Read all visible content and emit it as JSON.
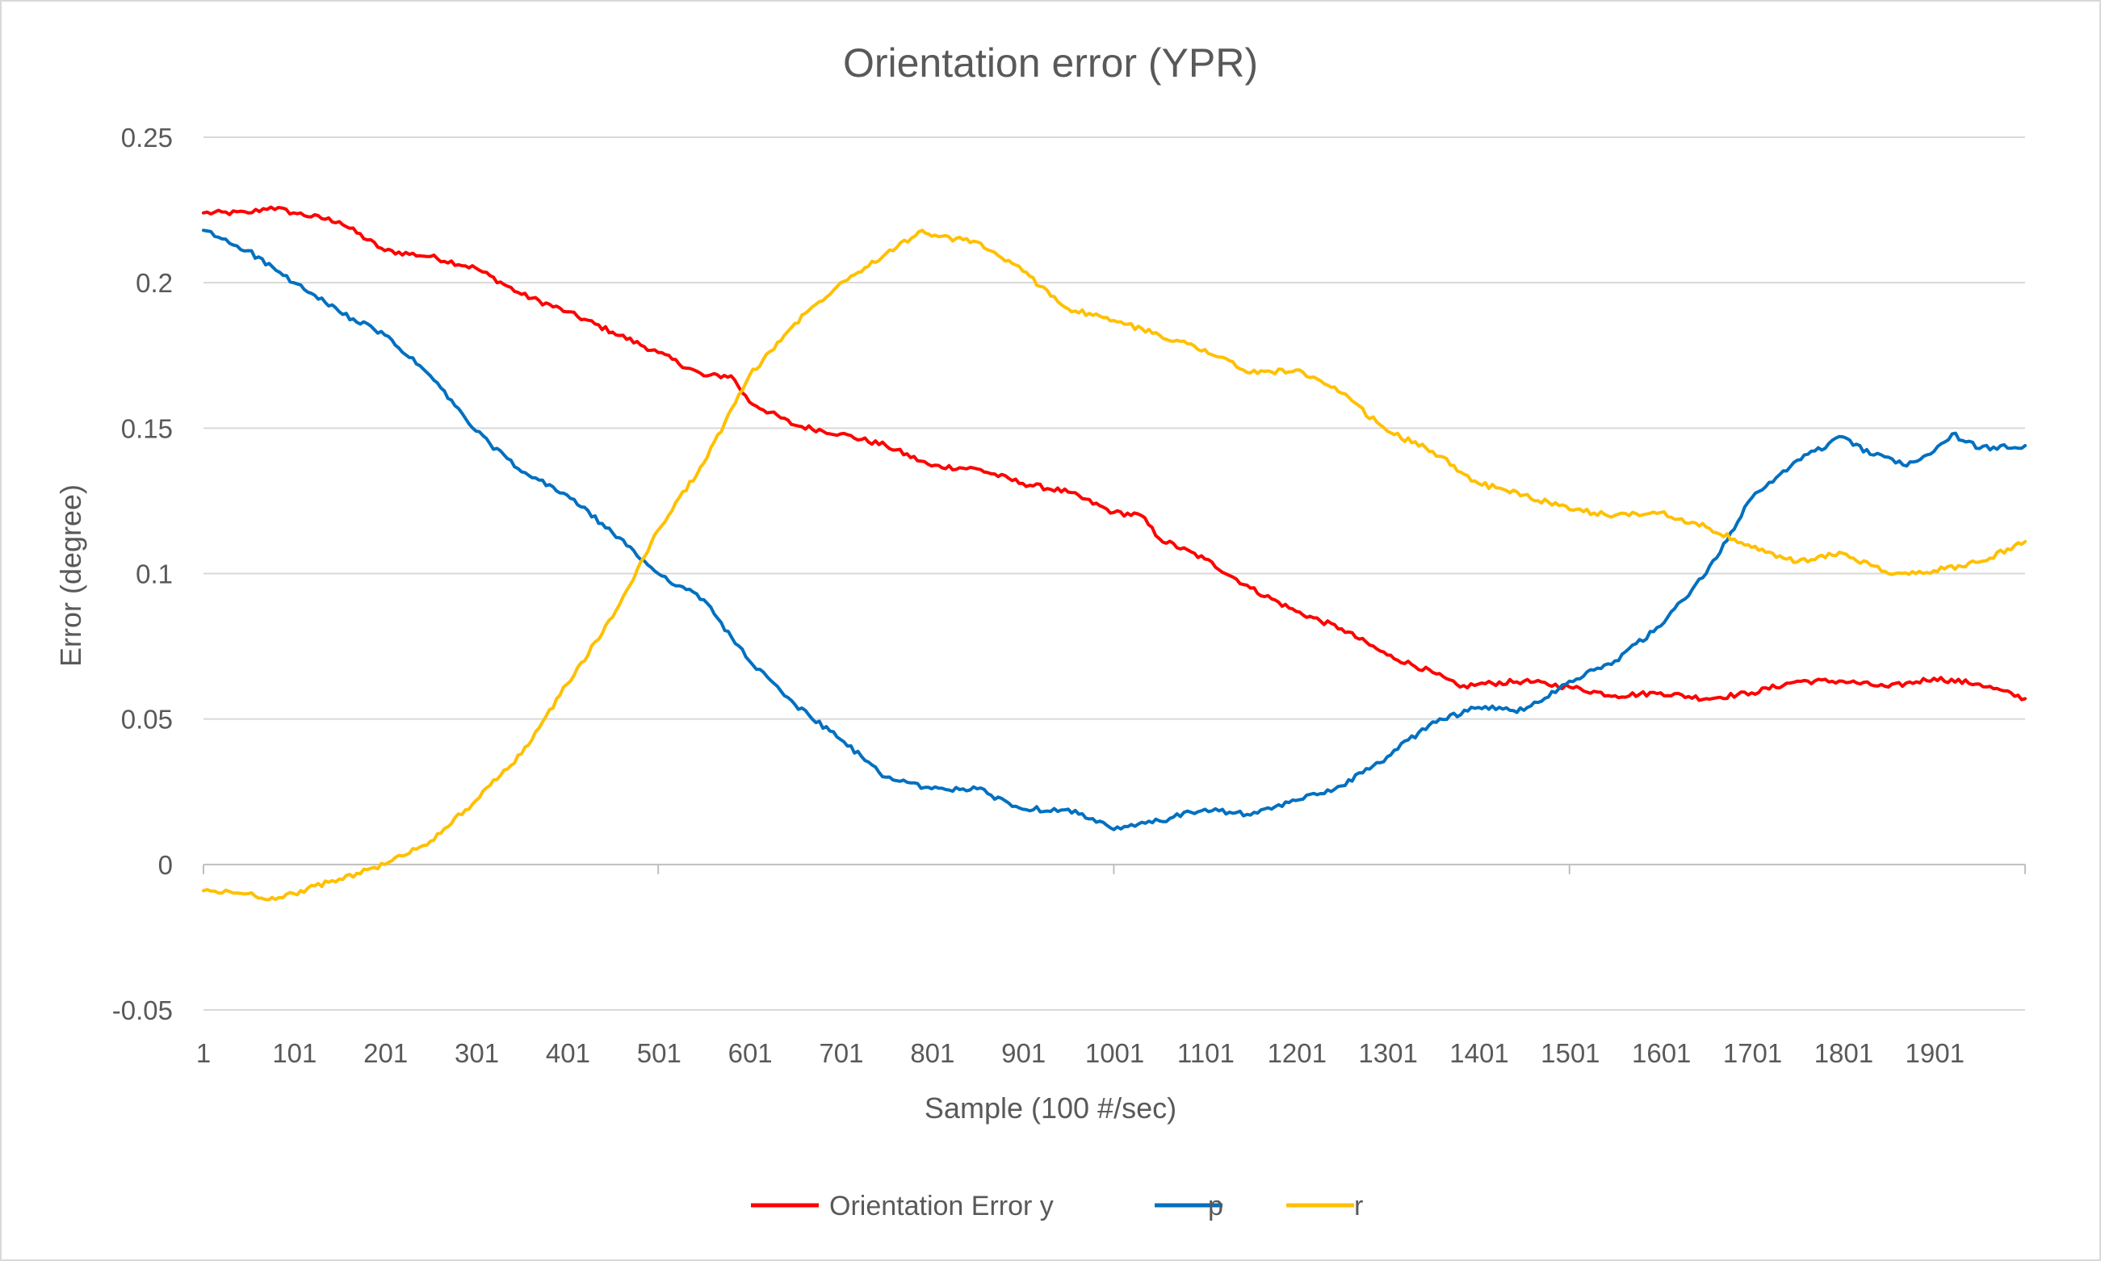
{
  "chart_data": {
    "type": "line",
    "title": "Orientation error (YPR)",
    "xlabel": "Sample (100 #/sec)",
    "ylabel": "Error (degree)",
    "x_range": [
      1,
      2000
    ],
    "ylim": [
      -0.05,
      0.25
    ],
    "y_ticks": [
      0.25,
      0.2,
      0.15,
      0.1,
      0.05,
      0,
      -0.05
    ],
    "y_tick_labels": [
      "0.25",
      "0.2",
      "0.15",
      "0.1",
      "0.05",
      "0",
      "-0.05"
    ],
    "x_ticks": [
      1,
      101,
      201,
      301,
      401,
      501,
      601,
      701,
      801,
      901,
      1001,
      1101,
      1201,
      1301,
      1401,
      1501,
      1601,
      1701,
      1801,
      1901
    ],
    "x_tick_labels": [
      "1",
      "101",
      "201",
      "301",
      "401",
      "501",
      "601",
      "701",
      "801",
      "901",
      "1001",
      "1101",
      "1201",
      "1301",
      "1401",
      "1501",
      "1601",
      "1701",
      "1801",
      "1901"
    ],
    "grid": true,
    "legend_position": "bottom",
    "series": [
      {
        "name": "Orientation Error y",
        "color": "#ff0000",
        "x": [
          1,
          50,
          75,
          100,
          150,
          200,
          250,
          300,
          350,
          400,
          450,
          500,
          550,
          580,
          600,
          650,
          700,
          750,
          800,
          850,
          900,
          950,
          1000,
          1030,
          1050,
          1100,
          1150,
          1200,
          1250,
          1300,
          1350,
          1380,
          1400,
          1450,
          1500,
          1550,
          1600,
          1650,
          1700,
          1750,
          1800,
          1850,
          1900,
          1950,
          2000
        ],
        "y": [
          0.224,
          0.224,
          0.226,
          0.224,
          0.221,
          0.211,
          0.209,
          0.205,
          0.196,
          0.19,
          0.183,
          0.176,
          0.168,
          0.168,
          0.159,
          0.151,
          0.148,
          0.144,
          0.137,
          0.136,
          0.131,
          0.128,
          0.121,
          0.12,
          0.112,
          0.105,
          0.095,
          0.087,
          0.081,
          0.072,
          0.066,
          0.061,
          0.062,
          0.063,
          0.061,
          0.058,
          0.059,
          0.057,
          0.059,
          0.063,
          0.063,
          0.061,
          0.064,
          0.062,
          0.057
        ]
      },
      {
        "name": "p",
        "color": "#0070c0",
        "x": [
          1,
          50,
          100,
          150,
          200,
          250,
          300,
          350,
          400,
          450,
          500,
          550,
          600,
          650,
          700,
          750,
          800,
          850,
          900,
          950,
          1000,
          1050,
          1100,
          1150,
          1200,
          1250,
          1300,
          1350,
          1400,
          1450,
          1500,
          1550,
          1600,
          1650,
          1700,
          1750,
          1800,
          1830,
          1850,
          1870,
          1900,
          1920,
          1950,
          2000
        ],
        "y": [
          0.218,
          0.211,
          0.2,
          0.19,
          0.182,
          0.168,
          0.149,
          0.135,
          0.127,
          0.114,
          0.1,
          0.091,
          0.07,
          0.055,
          0.043,
          0.03,
          0.026,
          0.026,
          0.019,
          0.019,
          0.012,
          0.015,
          0.019,
          0.017,
          0.022,
          0.027,
          0.037,
          0.049,
          0.054,
          0.053,
          0.063,
          0.07,
          0.082,
          0.1,
          0.126,
          0.139,
          0.147,
          0.141,
          0.14,
          0.137,
          0.142,
          0.148,
          0.143,
          0.144
        ]
      },
      {
        "name": "r",
        "color": "#ffc000",
        "x": [
          1,
          50,
          80,
          100,
          150,
          200,
          250,
          300,
          350,
          400,
          450,
          500,
          550,
          600,
          650,
          700,
          750,
          790,
          800,
          850,
          900,
          950,
          1000,
          1050,
          1100,
          1150,
          1200,
          1250,
          1300,
          1350,
          1400,
          1450,
          1500,
          1550,
          1600,
          1650,
          1700,
          1750,
          1800,
          1850,
          1880,
          1900,
          1950,
          2000
        ],
        "y": [
          -0.009,
          -0.01,
          -0.012,
          -0.01,
          -0.005,
          0.0,
          0.008,
          0.022,
          0.038,
          0.062,
          0.085,
          0.115,
          0.138,
          0.168,
          0.186,
          0.2,
          0.21,
          0.218,
          0.216,
          0.214,
          0.204,
          0.191,
          0.187,
          0.182,
          0.177,
          0.169,
          0.17,
          0.162,
          0.149,
          0.142,
          0.131,
          0.127,
          0.122,
          0.12,
          0.121,
          0.116,
          0.109,
          0.104,
          0.107,
          0.1,
          0.1,
          0.101,
          0.104,
          0.111
        ]
      }
    ]
  }
}
